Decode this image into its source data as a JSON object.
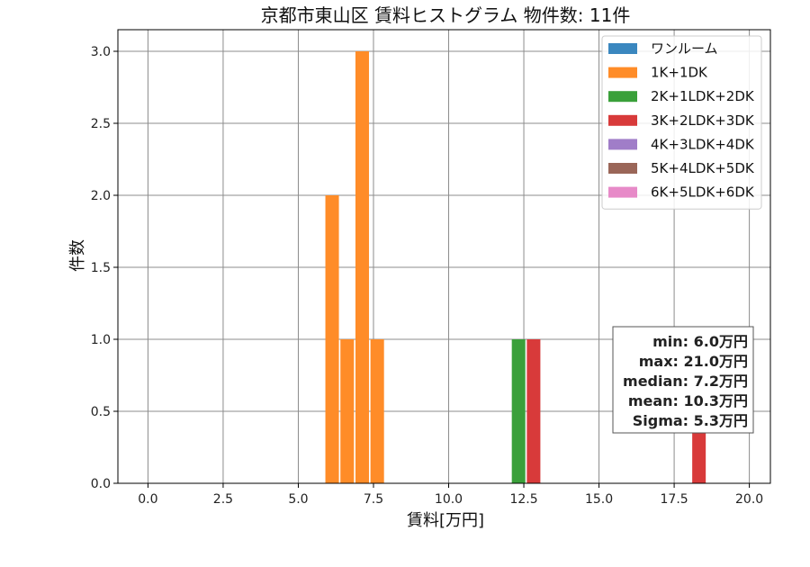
{
  "chart_data": {
    "type": "bar",
    "title": "京都市東山区 賃料ヒストグラム 物件数: 11件",
    "xlabel": "賃料[万円]",
    "ylabel": "件数",
    "xlim": [
      -1.0,
      20.7
    ],
    "ylim": [
      0,
      3.15
    ],
    "xticks": [
      "0.0",
      "2.5",
      "5.0",
      "7.5",
      "10.0",
      "12.5",
      "15.0",
      "17.5",
      "20.0"
    ],
    "yticks": [
      "0.0",
      "0.5",
      "1.0",
      "1.5",
      "2.0",
      "2.5",
      "3.0"
    ],
    "grid": true,
    "legend_position": "top-right",
    "series": [
      {
        "name": "ワンルーム",
        "color": "#3a87bf",
        "bars": []
      },
      {
        "name": "1K+1DK",
        "color": "#ff8c28",
        "bars": [
          {
            "x": 5.9,
            "x2": 6.35,
            "value": 2
          },
          {
            "x": 6.4,
            "x2": 6.85,
            "value": 1
          },
          {
            "x": 6.9,
            "x2": 7.35,
            "value": 3
          },
          {
            "x": 7.4,
            "x2": 7.85,
            "value": 1
          }
        ]
      },
      {
        "name": "2K+1LDK+2DK",
        "color": "#3aa03a",
        "bars": [
          {
            "x": 12.1,
            "x2": 12.55,
            "value": 1
          }
        ]
      },
      {
        "name": "3K+2LDK+3DK",
        "color": "#d83a3a",
        "bars": [
          {
            "x": 12.6,
            "x2": 13.05,
            "value": 1
          },
          {
            "x": 18.1,
            "x2": 18.55,
            "value": 1
          }
        ]
      },
      {
        "name": "4K+3LDK+4DK",
        "color": "#a07dc8",
        "bars": []
      },
      {
        "name": "5K+4LDK+5DK",
        "color": "#9a6658",
        "bars": []
      },
      {
        "name": "6K+5LDK+6DK",
        "color": "#e78ac8",
        "bars": []
      }
    ],
    "stats": [
      "min: 6.0万円",
      "max: 21.0万円",
      "median: 7.2万円",
      "mean: 10.3万円",
      "Sigma: 5.3万円"
    ]
  }
}
